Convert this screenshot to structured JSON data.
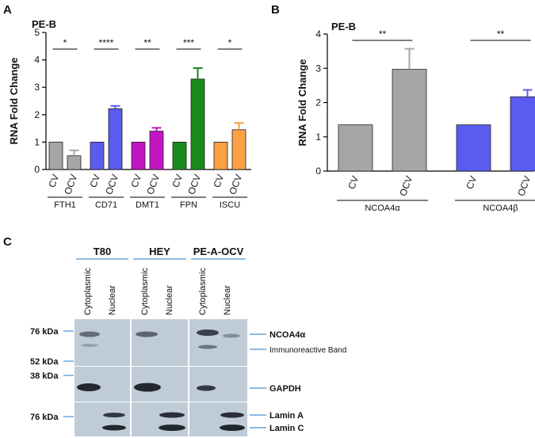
{
  "chart_data": [
    {
      "panel": "A",
      "type": "bar",
      "title": "PE-B",
      "ylabel": "RNA Fold Change",
      "ylim": [
        0,
        5
      ],
      "yticks": [
        0,
        1,
        2,
        3,
        4,
        5
      ],
      "groups": [
        {
          "name": "FTH1",
          "significance": "*",
          "bars": [
            {
              "label": "CV",
              "value": 1.0,
              "error": 0,
              "color": "#a6a6a6"
            },
            {
              "label": "OCV",
              "value": 0.5,
              "error": 0.2,
              "color": "#a6a6a6"
            }
          ]
        },
        {
          "name": "CD71",
          "significance": "****",
          "bars": [
            {
              "label": "CV",
              "value": 1.0,
              "error": 0,
              "color": "#5b5bf0"
            },
            {
              "label": "OCV",
              "value": 2.22,
              "error": 0.1,
              "color": "#5b5bf0"
            }
          ]
        },
        {
          "name": "DMT1",
          "significance": "**",
          "bars": [
            {
              "label": "CV",
              "value": 1.0,
              "error": 0,
              "color": "#c215c2"
            },
            {
              "label": "OCV",
              "value": 1.4,
              "error": 0.12,
              "color": "#c215c2"
            }
          ]
        },
        {
          "name": "FPN",
          "significance": "***",
          "bars": [
            {
              "label": "CV",
              "value": 1.0,
              "error": 0,
              "color": "#1a8a1a"
            },
            {
              "label": "OCV",
              "value": 3.3,
              "error": 0.4,
              "color": "#1a8a1a"
            }
          ]
        },
        {
          "name": "ISCU",
          "significance": "*",
          "bars": [
            {
              "label": "CV",
              "value": 1.0,
              "error": 0,
              "color": "#fba044"
            },
            {
              "label": "OCV",
              "value": 1.45,
              "error": 0.25,
              "color": "#fba044"
            }
          ]
        }
      ]
    },
    {
      "panel": "B",
      "type": "bar",
      "title": "PE-B",
      "ylabel": "RNA Fold Change",
      "ylim": [
        0,
        4
      ],
      "yticks": [
        0,
        1,
        2,
        3,
        4
      ],
      "groups": [
        {
          "name": "NCOA4α",
          "significance": "**",
          "bars": [
            {
              "label": "CV",
              "value": 1.35,
              "error": 0,
              "color": "#a6a6a6"
            },
            {
              "label": "OCV",
              "value": 2.97,
              "error": 0.6,
              "color": "#a6a6a6"
            }
          ]
        },
        {
          "name": "NCOA4β",
          "significance": "**",
          "bars": [
            {
              "label": "CV",
              "value": 1.35,
              "error": 0,
              "color": "#5b5bf0"
            },
            {
              "label": "OCV",
              "value": 2.17,
              "error": 0.2,
              "color": "#5b5bf0"
            }
          ]
        }
      ]
    }
  ],
  "western_blot": {
    "panel": "C",
    "cell_lines": [
      "T80",
      "HEY",
      "PE-A-OCV"
    ],
    "lanes": [
      "Cytoplasmic",
      "Nuclear"
    ],
    "markers": [
      "76 kDa",
      "52 kDa",
      "38 kDa",
      "76 kDa"
    ],
    "band_labels": {
      "ncoa4": "NCOA4α",
      "immuno": "Immunoreactive Band",
      "gapdh": "GAPDH",
      "lamin_a": "Lamin A",
      "lamin_c": "Lamin C"
    }
  }
}
